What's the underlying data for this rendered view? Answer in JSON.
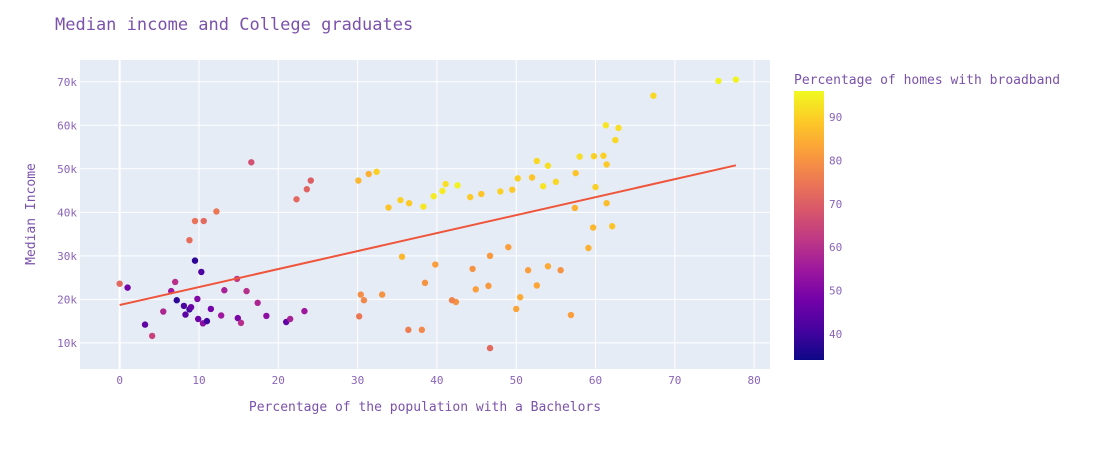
{
  "colors": {
    "text": "#7b52ab",
    "tick_text": "#8a63b8",
    "plot_bg": "#e5ecf6",
    "grid": "#ffffff",
    "trendline": "#ef553b",
    "colorscale": [
      "#0d0887",
      "#46039f",
      "#7201a8",
      "#9c179e",
      "#bd3786",
      "#d8576b",
      "#ed7953",
      "#fb9f3a",
      "#fdca26",
      "#f0f921"
    ]
  },
  "chart_data": {
    "type": "scatter",
    "title": "Median income and College graduates",
    "xlabel": "Percentage of the population with a Bachelors",
    "ylabel": "Median Income",
    "colorbar_title": "Percentage of homes with broadband",
    "xlim": [
      -5,
      82
    ],
    "ylim": [
      4000,
      75000
    ],
    "color_range": [
      34,
      96
    ],
    "x_ticks": [
      0,
      10,
      20,
      30,
      40,
      50,
      60,
      70,
      80
    ],
    "x_tick_labels": [
      "0",
      "10",
      "20",
      "30",
      "40",
      "50",
      "60",
      "70",
      "80"
    ],
    "y_ticks": [
      10000,
      20000,
      30000,
      40000,
      50000,
      60000,
      70000
    ],
    "y_tick_labels": [
      "10k",
      "20k",
      "30k",
      "40k",
      "50k",
      "60k",
      "70k"
    ],
    "color_ticks": [
      40,
      50,
      60,
      70,
      80,
      90
    ],
    "color_tick_labels": [
      "40",
      "50",
      "60",
      "70",
      "80",
      "90"
    ],
    "grid": true,
    "legend": "colorbar-right",
    "trendline": {
      "x": [
        0,
        77.7
      ],
      "y": [
        18700,
        50800
      ]
    },
    "points": [
      [
        75.5,
        70200,
        95
      ],
      [
        77.7,
        70500,
        95
      ],
      [
        67.3,
        66800,
        91
      ],
      [
        61.3,
        60000,
        93
      ],
      [
        62.9,
        59400,
        92
      ],
      [
        62.5,
        56600,
        91
      ],
      [
        61.0,
        53000,
        90
      ],
      [
        58.0,
        52800,
        92
      ],
      [
        59.8,
        52900,
        90
      ],
      [
        52.6,
        51800,
        91
      ],
      [
        54.0,
        50700,
        92
      ],
      [
        57.5,
        49000,
        88
      ],
      [
        60.0,
        45800,
        90
      ],
      [
        61.4,
        51000,
        89
      ],
      [
        52.0,
        48000,
        88
      ],
      [
        50.2,
        47800,
        90
      ],
      [
        55.0,
        47000,
        91
      ],
      [
        53.4,
        46000,
        93
      ],
      [
        49.5,
        45200,
        89
      ],
      [
        48.0,
        44800,
        90
      ],
      [
        45.6,
        44200,
        88
      ],
      [
        44.2,
        43500,
        89
      ],
      [
        40.7,
        44900,
        94
      ],
      [
        42.6,
        46200,
        95
      ],
      [
        41.1,
        46500,
        92
      ],
      [
        39.6,
        43700,
        94
      ],
      [
        38.3,
        41300,
        93
      ],
      [
        36.5,
        42100,
        89
      ],
      [
        35.4,
        42800,
        90
      ],
      [
        33.9,
        41100,
        88
      ],
      [
        31.4,
        48800,
        85
      ],
      [
        32.4,
        49300,
        90
      ],
      [
        30.1,
        47300,
        86
      ],
      [
        46.7,
        8800,
        72
      ],
      [
        36.4,
        13000,
        76
      ],
      [
        38.1,
        13000,
        78
      ],
      [
        56.9,
        16400,
        82
      ],
      [
        50.0,
        17800,
        83
      ],
      [
        50.5,
        20500,
        84
      ],
      [
        42.4,
        19400,
        80
      ],
      [
        41.9,
        19800,
        77
      ],
      [
        30.2,
        16100,
        75
      ],
      [
        30.8,
        19800,
        78
      ],
      [
        33.1,
        21100,
        80
      ],
      [
        52.6,
        23200,
        83
      ],
      [
        51.5,
        26700,
        82
      ],
      [
        54.0,
        27600,
        84
      ],
      [
        55.6,
        26700,
        80
      ],
      [
        59.1,
        31800,
        85
      ],
      [
        59.7,
        36500,
        86
      ],
      [
        61.4,
        42100,
        87
      ],
      [
        62.1,
        36800,
        88
      ],
      [
        57.4,
        41000,
        85
      ],
      [
        49.0,
        32000,
        82
      ],
      [
        46.7,
        30000,
        81
      ],
      [
        44.5,
        27000,
        80
      ],
      [
        44.9,
        22300,
        82
      ],
      [
        46.5,
        23100,
        81
      ],
      [
        38.5,
        23800,
        80
      ],
      [
        39.8,
        28000,
        82
      ],
      [
        16.6,
        51500,
        67
      ],
      [
        24.1,
        47300,
        70
      ],
      [
        23.6,
        45300,
        71
      ],
      [
        22.3,
        43000,
        72
      ],
      [
        12.2,
        40200,
        75
      ],
      [
        8.8,
        33600,
        73
      ],
      [
        9.5,
        38000,
        74
      ],
      [
        10.6,
        38000,
        72
      ],
      [
        0.0,
        23600,
        72
      ],
      [
        1.0,
        22700,
        48
      ],
      [
        3.2,
        14200,
        45
      ],
      [
        4.1,
        11600,
        64
      ],
      [
        5.5,
        17200,
        58
      ],
      [
        7.2,
        19800,
        38
      ],
      [
        8.1,
        18500,
        42
      ],
      [
        8.8,
        17700,
        40
      ],
      [
        9.9,
        15500,
        47
      ],
      [
        10.5,
        14500,
        52
      ],
      [
        11.0,
        15000,
        40
      ],
      [
        12.8,
        16300,
        55
      ],
      [
        14.9,
        15700,
        49
      ],
      [
        15.3,
        14600,
        60
      ],
      [
        18.5,
        16200,
        52
      ],
      [
        21.0,
        14800,
        45
      ],
      [
        21.5,
        15500,
        57
      ],
      [
        23.3,
        17300,
        55
      ],
      [
        30.4,
        21100,
        79
      ],
      [
        35.6,
        29800,
        86
      ],
      [
        9.5,
        28900,
        38
      ],
      [
        10.3,
        26300,
        42
      ],
      [
        7.0,
        24000,
        60
      ],
      [
        6.5,
        21900,
        55
      ],
      [
        8.3,
        16500,
        44
      ],
      [
        9.0,
        18200,
        46
      ],
      [
        9.8,
        20100,
        50
      ],
      [
        11.5,
        17800,
        48
      ],
      [
        13.2,
        22100,
        57
      ],
      [
        14.8,
        24700,
        62
      ],
      [
        16.0,
        21900,
        60
      ],
      [
        17.4,
        19200,
        58
      ]
    ]
  }
}
